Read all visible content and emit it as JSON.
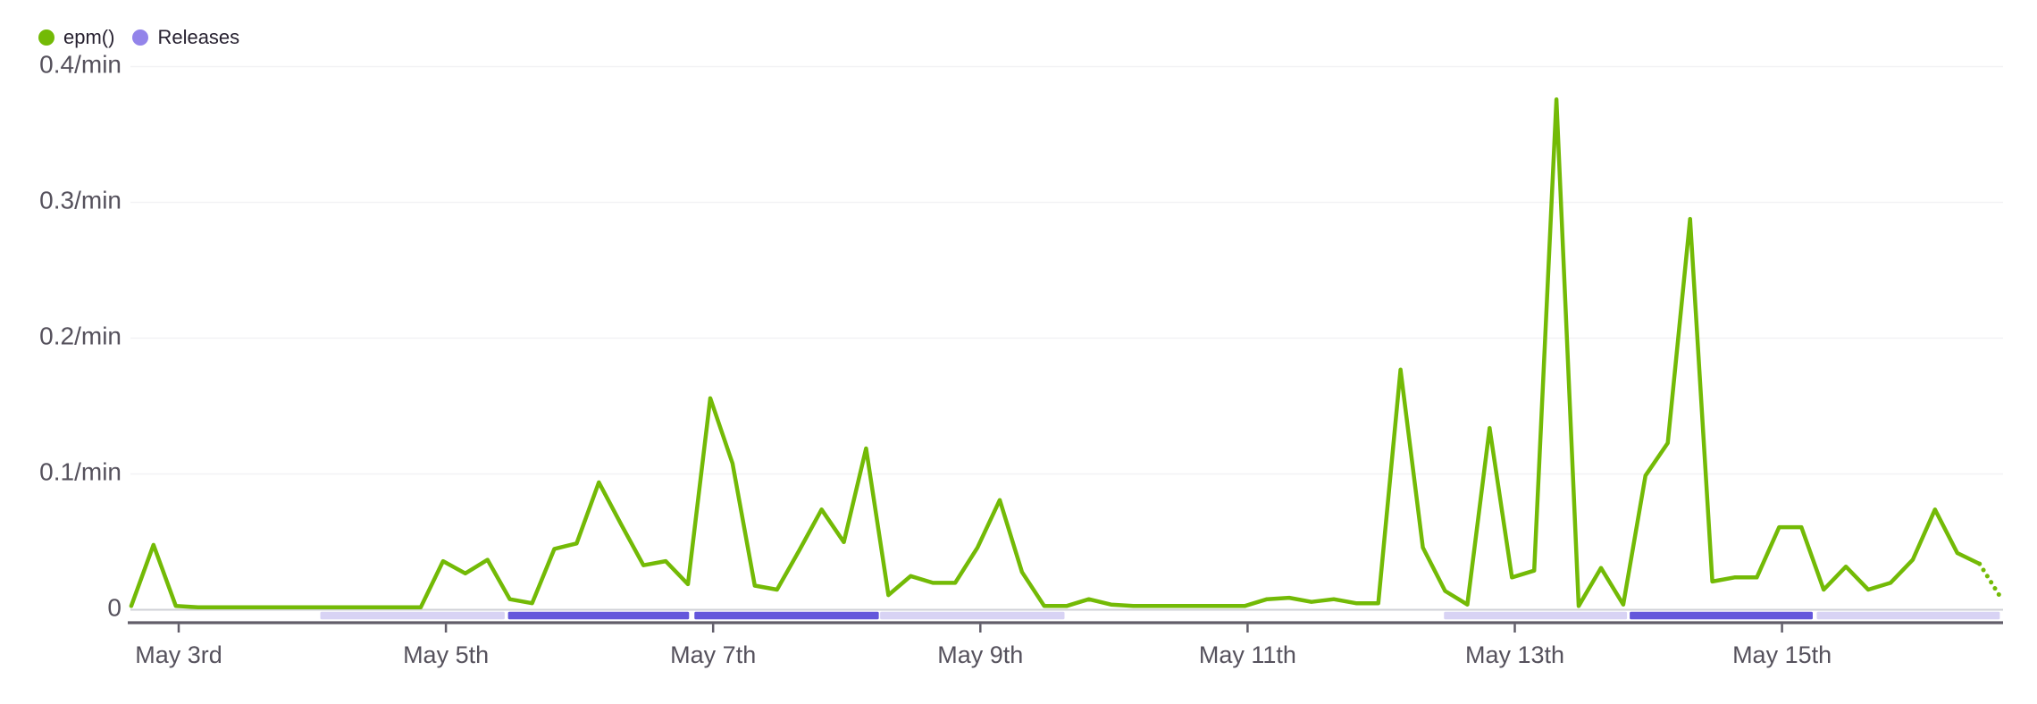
{
  "legend": {
    "items": [
      {
        "label": "epm()",
        "color": "#73ba06"
      },
      {
        "label": "Releases",
        "color": "#9384ea"
      }
    ]
  },
  "chart_data": {
    "type": "line",
    "title": "",
    "xlabel": "",
    "ylabel": "",
    "y_axis": {
      "tick_labels": [
        "0.4/min",
        "0.3/min",
        "0.2/min",
        "0.1/min",
        "0"
      ],
      "tick_values": [
        0.4,
        0.3,
        0.2,
        0.1,
        0
      ],
      "ylim": [
        0,
        0.4
      ],
      "unit": "/min"
    },
    "x_axis": {
      "tick_labels": [
        "May 3rd",
        "May 5th",
        "May 7th",
        "May 9th",
        "May 11th",
        "May 13th",
        "May 15th"
      ],
      "tick_day_offsets": [
        0,
        2,
        4,
        6,
        8,
        10,
        12
      ],
      "grid": false
    },
    "series": [
      {
        "name": "epm()",
        "color": "#73ba06",
        "bucket_hours": 4,
        "start_day_offset": -0.355,
        "last_segment_dotted": true,
        "values": [
          0.002,
          0.047,
          0.002,
          0.001,
          0.001,
          0.001,
          0.001,
          0.001,
          0.001,
          0.001,
          0.001,
          0.001,
          0.001,
          0.001,
          0.035,
          0.026,
          0.036,
          0.007,
          0.004,
          0.044,
          0.048,
          0.093,
          0.062,
          0.032,
          0.035,
          0.018,
          0.155,
          0.107,
          0.017,
          0.014,
          0.043,
          0.073,
          0.049,
          0.118,
          0.01,
          0.024,
          0.019,
          0.019,
          0.045,
          0.08,
          0.027,
          0.002,
          0.002,
          0.007,
          0.003,
          0.002,
          0.002,
          0.002,
          0.002,
          0.002,
          0.002,
          0.007,
          0.008,
          0.005,
          0.007,
          0.004,
          0.004,
          0.176,
          0.045,
          0.013,
          0.003,
          0.133,
          0.023,
          0.028,
          0.375,
          0.002,
          0.03,
          0.003,
          0.098,
          0.122,
          0.287,
          0.02,
          0.023,
          0.023,
          0.06,
          0.06,
          0.014,
          0.031,
          0.014,
          0.019,
          0.036,
          0.073,
          0.041,
          0.033,
          0.007
        ]
      }
    ],
    "releases": {
      "name": "Releases",
      "light_color": "#d8d3f4",
      "dark_color": "#6457db",
      "segments": [
        {
          "start_day": 1.06,
          "end_day": 2.44,
          "style": "light"
        },
        {
          "start_day": 2.465,
          "end_day": 3.82,
          "style": "dark"
        },
        {
          "start_day": 3.86,
          "end_day": 5.24,
          "style": "dark"
        },
        {
          "start_day": 5.25,
          "end_day": 6.63,
          "style": "light"
        },
        {
          "start_day": 9.47,
          "end_day": 10.84,
          "style": "light"
        },
        {
          "start_day": 10.86,
          "end_day": 12.23,
          "style": "dark"
        },
        {
          "start_day": 12.26,
          "end_day": 13.63,
          "style": "light"
        }
      ]
    }
  }
}
